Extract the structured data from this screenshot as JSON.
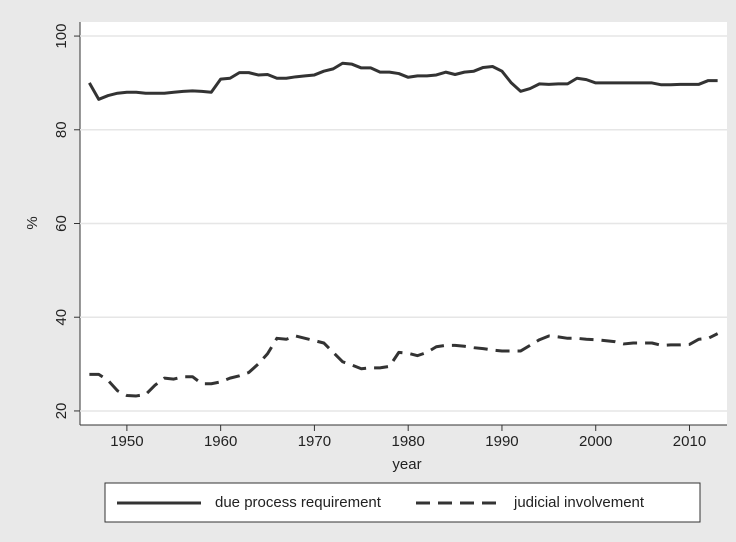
{
  "chart_data": {
    "type": "line",
    "x_label": "year",
    "y_label": "%",
    "x": [
      1946,
      1947,
      1948,
      1949,
      1950,
      1951,
      1952,
      1953,
      1954,
      1955,
      1956,
      1957,
      1958,
      1959,
      1960,
      1961,
      1962,
      1963,
      1964,
      1965,
      1966,
      1967,
      1968,
      1969,
      1970,
      1971,
      1972,
      1973,
      1974,
      1975,
      1976,
      1977,
      1978,
      1979,
      1980,
      1981,
      1982,
      1983,
      1984,
      1985,
      1986,
      1987,
      1988,
      1989,
      1990,
      1991,
      1992,
      1993,
      1994,
      1995,
      1996,
      1997,
      1998,
      1999,
      2000,
      2001,
      2002,
      2003,
      2004,
      2005,
      2006,
      2007,
      2008,
      2009,
      2010,
      2011,
      2012,
      2013
    ],
    "series": [
      {
        "name": "due process requirement",
        "color": "#333333",
        "line_style": "solid",
        "values": [
          90,
          86.5,
          87.3,
          87.8,
          88,
          88,
          87.8,
          87.8,
          87.8,
          88,
          88.2,
          88.3,
          88.2,
          88,
          90.8,
          91,
          92.2,
          92.2,
          91.7,
          91.8,
          91,
          91,
          91.3,
          91.5,
          91.7,
          92.5,
          93,
          94.2,
          94,
          93.2,
          93.2,
          92.3,
          92.3,
          92,
          91.2,
          91.5,
          91.5,
          91.7,
          92.3,
          91.8,
          92.3,
          92.5,
          93.3,
          93.5,
          92.5,
          90,
          88.2,
          88.8,
          89.8,
          89.7,
          89.8,
          89.8,
          91,
          90.7,
          90,
          90,
          90,
          90,
          90,
          90,
          90,
          89.6,
          89.6,
          89.7,
          89.7,
          89.7,
          90.5,
          90.5
        ]
      },
      {
        "name": "judicial involvement",
        "color": "#333333",
        "line_style": "dashed",
        "values": [
          27.8,
          27.8,
          26.5,
          24.3,
          23.3,
          23.2,
          23.5,
          25.5,
          27,
          26.8,
          27.3,
          27.3,
          25.8,
          25.8,
          26.2,
          27,
          27.5,
          28.2,
          30,
          32.2,
          35.5,
          35.3,
          36,
          35.5,
          35,
          34.5,
          32.5,
          30.5,
          29.8,
          29,
          29.2,
          29.2,
          29.5,
          32.5,
          32.3,
          31.8,
          32.5,
          33.7,
          34,
          34,
          33.8,
          33.5,
          33.3,
          33,
          32.8,
          32.8,
          32.8,
          34,
          35.2,
          36,
          35.8,
          35.5,
          35.5,
          35.3,
          35.2,
          35,
          34.8,
          34.3,
          34.5,
          34.5,
          34.5,
          34,
          34.1,
          34.1,
          34.2,
          35.3,
          35.5,
          36.5
        ]
      }
    ],
    "xlim": [
      1945,
      2014
    ],
    "xticks": [
      1950,
      1960,
      1970,
      1980,
      1990,
      2000,
      2010
    ],
    "ylim": [
      17,
      103
    ],
    "yticks": [
      20,
      40,
      60,
      80,
      100
    ],
    "grid": true,
    "legend": "bottom"
  }
}
